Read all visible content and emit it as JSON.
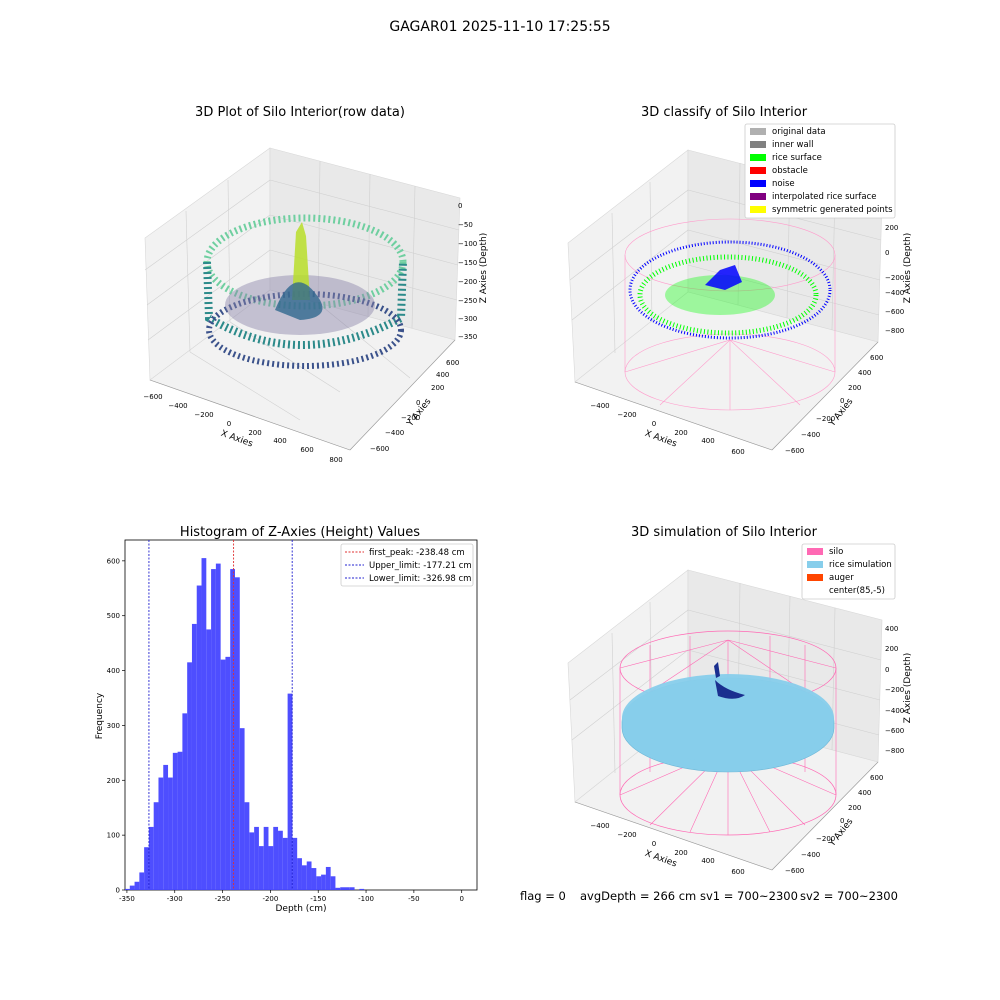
{
  "suptitle": "GAGAR01 2025-11-10 17:25:55",
  "status": {
    "flag": "flag = 0",
    "avg_depth": "avgDepth = 266 cm",
    "sv1": "sv1 = 700~2300",
    "sv2": "sv2 = 700~2300"
  },
  "colors": {
    "hist_bar": "#4444ff",
    "first_peak": "#e03030",
    "limits": "#2020d0",
    "silo": "#ff69b4",
    "rice_simulation": "#87ceeb",
    "auger": "#ff4500",
    "original_data": "#b0b0b0",
    "inner_wall": "#808080",
    "rice_surface": "#00ff00",
    "obstacle": "#ff0000",
    "noise": "#0000ff",
    "interpolated": "#800080",
    "symmetric": "#ffff00"
  },
  "chart_data": [
    {
      "type": "scatter",
      "title": "3D Plot of Silo Interior(row data)",
      "xlabel": "X Axies",
      "ylabel": "Y Axies",
      "zlabel": "Z Axies (Depth)",
      "x_ticks": [
        "−600",
        "−400",
        "−200",
        "0",
        "200",
        "400",
        "600",
        "800"
      ],
      "y_ticks": [
        "−600",
        "−400",
        "−200",
        "0",
        "200",
        "400",
        "600"
      ],
      "z_ticks": [
        "0",
        "−50",
        "−100",
        "−150",
        "−200",
        "−250",
        "−300",
        "−350"
      ],
      "colormap": "viridis"
    },
    {
      "type": "scatter",
      "title": "3D classify of Silo Interior",
      "xlabel": "X Axies",
      "ylabel": "Y Axies",
      "zlabel": "Z Axies (Depth)",
      "x_ticks": [
        "−400",
        "−200",
        "0",
        "200",
        "400",
        "600"
      ],
      "y_ticks": [
        "−600",
        "−400",
        "−200",
        "0",
        "200",
        "400",
        "600"
      ],
      "z_ticks": [
        "200",
        "0",
        "−200",
        "−400",
        "−600",
        "−800"
      ],
      "z_ticks_top": "400",
      "legend": [
        "original data",
        "inner wall",
        "rice surface",
        "obstacle",
        "noise",
        "interpolated rice surface",
        "symmetric generated points"
      ]
    },
    {
      "type": "bar",
      "title": "Histogram of Z-Axies (Height) Values",
      "xlabel": "Depth (cm)",
      "ylabel": "Frequency",
      "xlim": [
        -352,
        16
      ],
      "ylim": [
        0,
        638
      ],
      "x_ticks": [
        -350,
        -300,
        -250,
        -200,
        -150,
        -100,
        -50,
        0
      ],
      "y_ticks": [
        0,
        100,
        200,
        300,
        400,
        500,
        600
      ],
      "bin_start": -352,
      "bin_width": 5,
      "values": [
        2,
        8,
        15,
        32,
        78,
        115,
        160,
        205,
        228,
        205,
        250,
        252,
        322,
        415,
        485,
        555,
        605,
        475,
        585,
        595,
        420,
        425,
        585,
        570,
        295,
        160,
        105,
        115,
        80,
        115,
        80,
        115,
        108,
        95,
        358,
        95,
        58,
        45,
        52,
        40,
        25,
        28,
        42,
        25,
        4,
        5,
        5,
        5,
        0,
        2
      ],
      "lines": [
        {
          "label": "first_peak: -238.48 cm",
          "x": -238.48,
          "style": "red"
        },
        {
          "label": "Upper_limit: -177.21 cm",
          "x": -177.21,
          "style": "blue"
        },
        {
          "label": "Lower_limit: -326.98 cm",
          "x": -326.98,
          "style": "blue"
        }
      ]
    },
    {
      "type": "scatter",
      "title": "3D simulation of Silo Interior",
      "xlabel": "X Axies",
      "ylabel": "Y Axies",
      "zlabel": "Z Axies (Depth)",
      "x_ticks": [
        "−400",
        "−200",
        "0",
        "200",
        "400",
        "600"
      ],
      "y_ticks": [
        "−600",
        "−400",
        "−200",
        "0",
        "200",
        "400",
        "600"
      ],
      "z_ticks": [
        "400",
        "200",
        "0",
        "−200",
        "−400",
        "−600",
        "−800"
      ],
      "legend": [
        "silo",
        "rice simulation",
        "auger",
        "center(85,-5)"
      ]
    }
  ]
}
